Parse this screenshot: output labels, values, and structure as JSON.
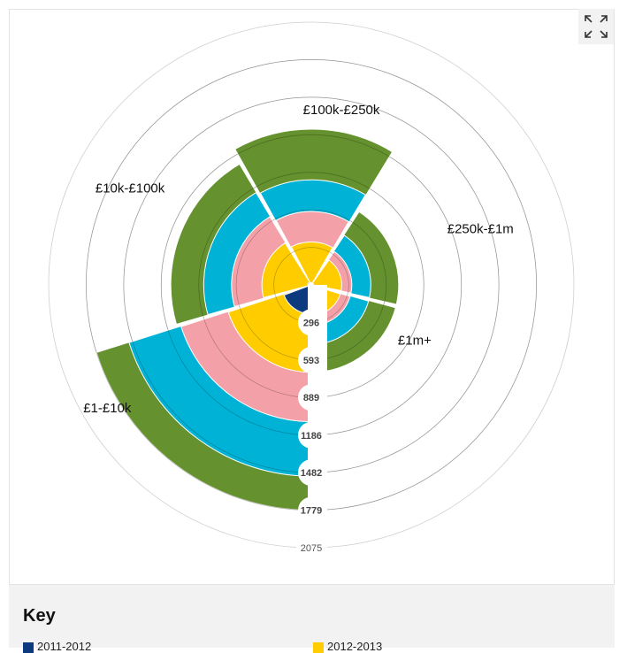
{
  "chart_data": {
    "type": "polar-area",
    "title": "",
    "segments": [
      "£1-£10k",
      "£10k-£100k",
      "£100k-£250k",
      "£250k-£1m",
      "£1m+"
    ],
    "series": [
      {
        "name": "2011-2012",
        "color": "#0d3a7e",
        "values": [
          230,
          30,
          10,
          5,
          5
        ]
      },
      {
        "name": "2012-2013",
        "color": "#ffcc00",
        "values": [
          690,
          390,
          340,
          240,
          240
        ]
      },
      {
        "name": "",
        "color": "#f4a0a8",
        "values": [
          1080,
          630,
          580,
          320,
          320
        ]
      },
      {
        "name": "",
        "color": "#00b3d6",
        "values": [
          1510,
          850,
          830,
          470,
          470
        ]
      },
      {
        "name": "",
        "color": "#65912e",
        "values": [
          1779,
          1110,
          1230,
          690,
          690
        ]
      }
    ],
    "tick_values": [
      296,
      593,
      889,
      1186,
      1482,
      1779
    ],
    "outer_tick": 2075,
    "rmax": 2075,
    "grid": true
  },
  "key": {
    "title": "Key",
    "items": [
      {
        "label": "2011-2012",
        "color": "#0d3a7e"
      },
      {
        "label": "2012-2013",
        "color": "#ffcc00"
      }
    ]
  },
  "controls": {
    "expand_icon": "expand-icon"
  }
}
